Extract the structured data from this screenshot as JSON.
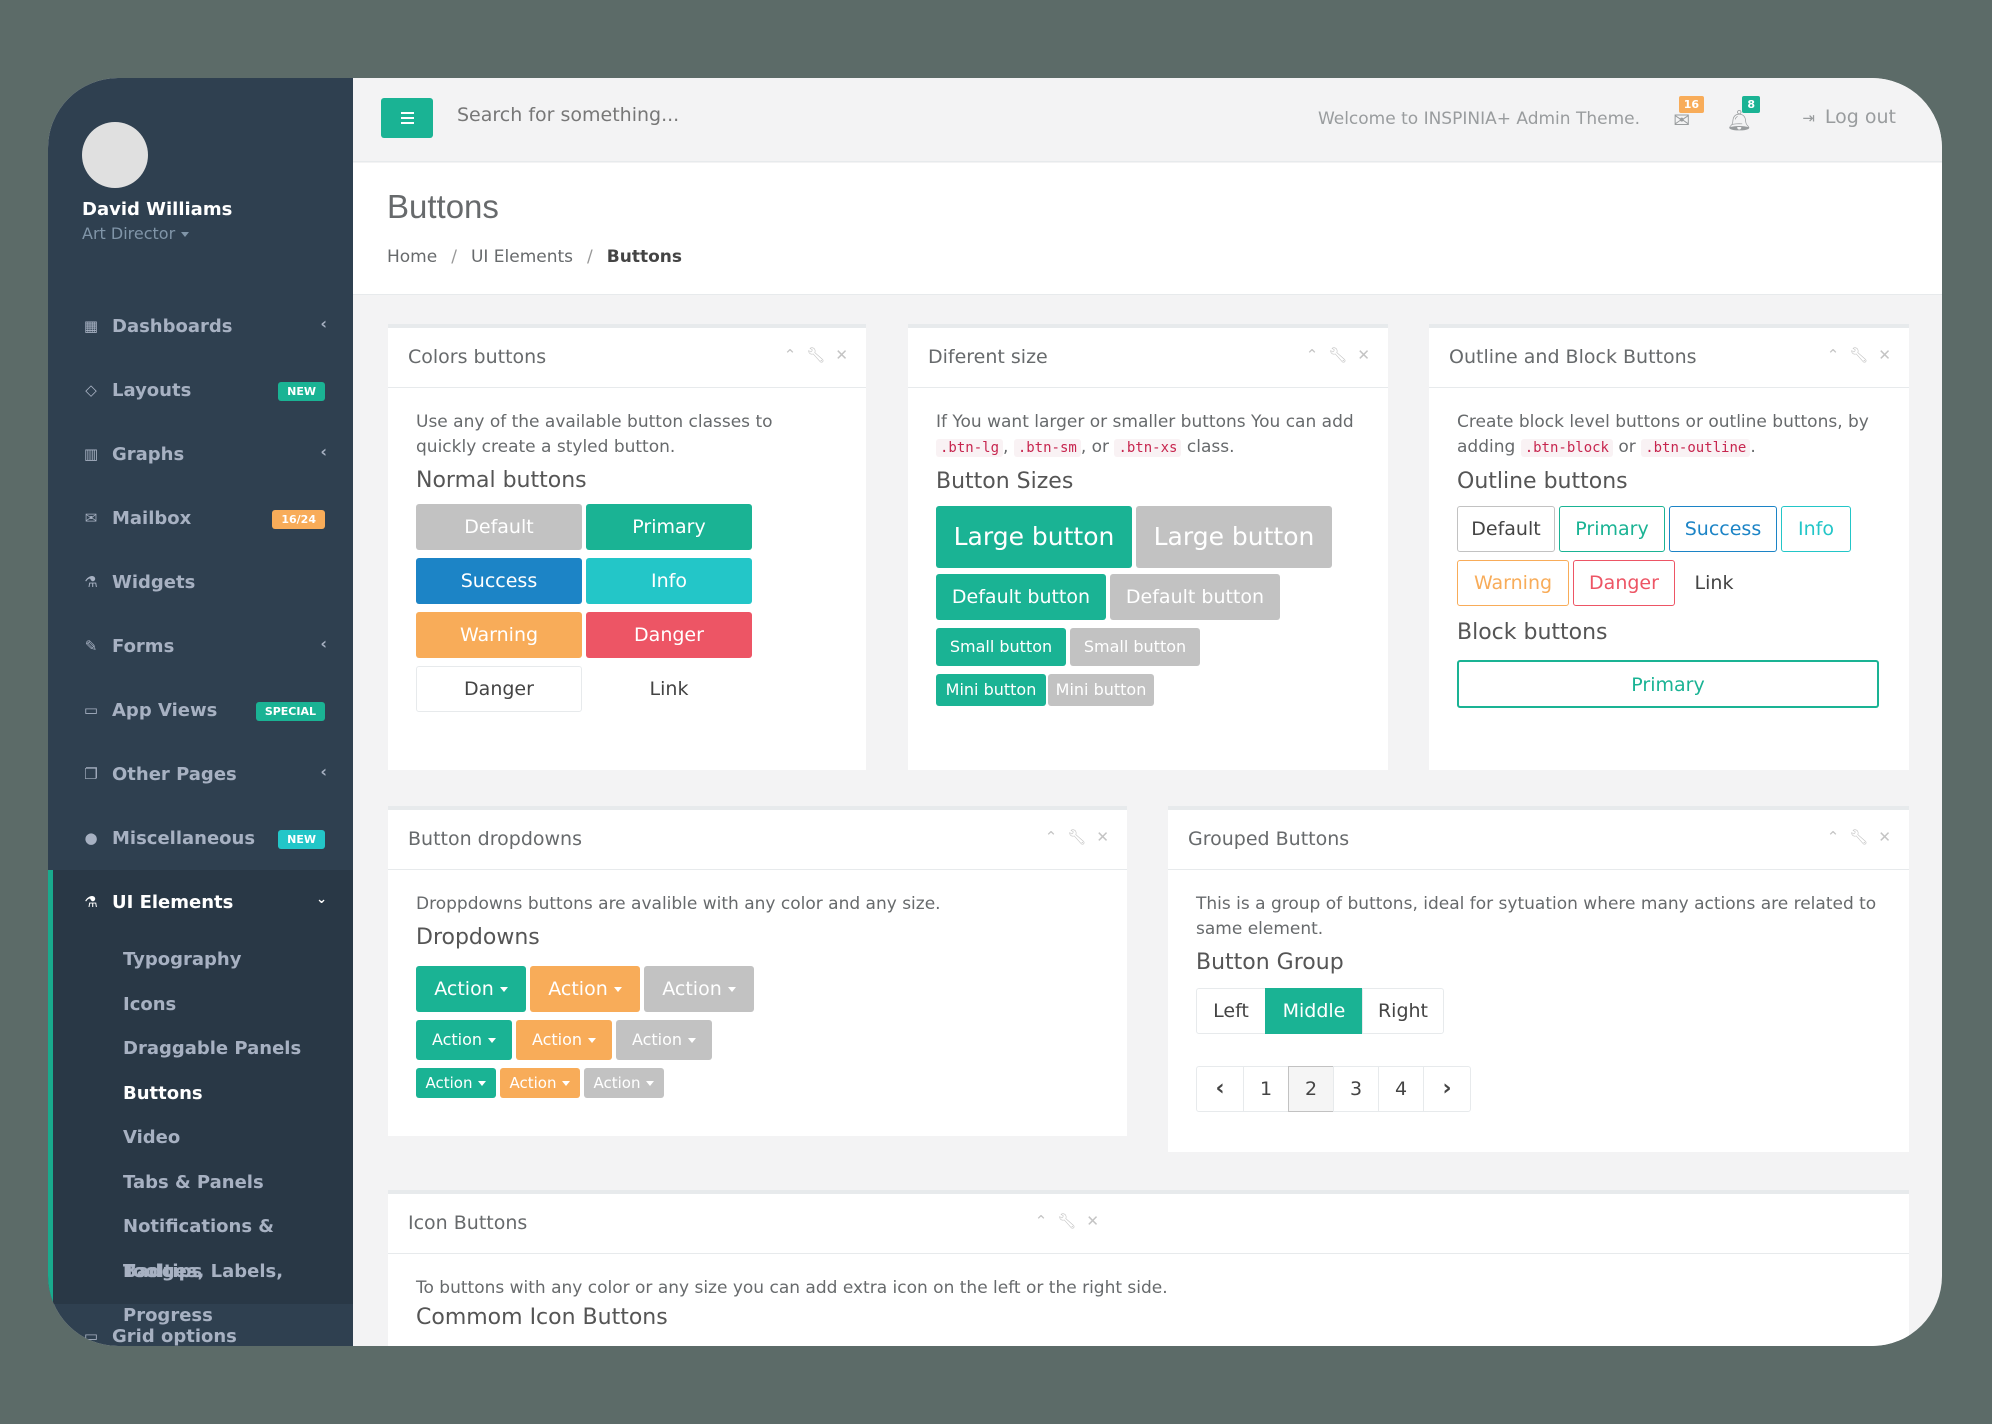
{
  "profile": {
    "name": "David Williams",
    "role": "Art Director"
  },
  "nav": [
    {
      "label": "Dashboards",
      "icon": "th-large-icon",
      "glyph": "▦"
    },
    {
      "label": "Layouts",
      "icon": "diamond-icon",
      "glyph": "◇",
      "badge": "NEW",
      "badge_color": "#1ab394"
    },
    {
      "label": "Graphs",
      "icon": "bar-chart-icon",
      "glyph": "▥"
    },
    {
      "label": "Mailbox",
      "icon": "envelope-icon",
      "glyph": "✉",
      "badge": "16/24",
      "badge_color": "#f8ac59"
    },
    {
      "label": "Widgets",
      "icon": "flask-icon",
      "glyph": "⚗"
    },
    {
      "label": "Forms",
      "icon": "edit-icon",
      "glyph": "✎"
    },
    {
      "label": "App Views",
      "icon": "desktop-icon",
      "glyph": "▭",
      "badge": "SPECIAL",
      "badge_color": "#1ab394"
    },
    {
      "label": "Other Pages",
      "icon": "files-icon",
      "glyph": "❐"
    },
    {
      "label": "Miscellaneous",
      "icon": "globe-icon",
      "glyph": "●",
      "badge": "NEW",
      "badge_color": "#23c6c8"
    }
  ],
  "ui_elements": {
    "label": "UI Elements",
    "items": [
      "Typography",
      "Icons",
      "Draggable Panels",
      "Buttons",
      "Video",
      "Tabs & Panels",
      "Notifications & Tooltips",
      "Badges, Labels, Progress"
    ]
  },
  "grid_options": "Grid options",
  "topbar": {
    "search_placeholder": "Search for something...",
    "welcome": "Welcome to INSPINIA+ Admin Theme.",
    "mail_count": "16",
    "bell_count": "8",
    "logout": "Log out"
  },
  "heading": {
    "title": "Buttons",
    "crumb1": "Home",
    "crumb2": "UI Elements",
    "crumb3": "Buttons"
  },
  "colors_panel": {
    "title": "Colors buttons",
    "desc": "Use any of the available button classes to quickly create a styled button.",
    "sub": "Normal buttons",
    "buttons": [
      "Default",
      "Primary",
      "Success",
      "Info",
      "Warning",
      "Danger",
      "Danger",
      "Link"
    ]
  },
  "size_panel": {
    "title": "Diferent size",
    "desc1": "If You want larger or smaller buttons You can add",
    "code1": ".btn-lg",
    "code2": ".btn-sm",
    "or": ", or",
    "code3": ".btn-xs",
    "desc2": "class.",
    "sub": "Button Sizes",
    "large": "Large button",
    "default": "Default button",
    "small": "Small button",
    "mini": "Mini button"
  },
  "outline_panel": {
    "title": "Outline and Block Buttons",
    "desc1": "Create block level buttons or outline buttons, by adding",
    "code1": ".btn-block",
    "or": "or",
    "code2": ".btn-outline",
    "sub1": "Outline buttons",
    "buttons": [
      "Default",
      "Primary",
      "Success",
      "Info",
      "Warning",
      "Danger",
      "Link"
    ],
    "sub2": "Block buttons",
    "block": "Primary"
  },
  "dropdown_panel": {
    "title": "Button dropdowns",
    "desc": "Droppdowns buttons are avalible with any color and any size.",
    "sub": "Dropdowns",
    "label": "Action"
  },
  "grouped_panel": {
    "title": "Grouped Buttons",
    "desc": "This is a group of buttons, ideal for sytuation where many actions are related to same element.",
    "sub": "Button Group",
    "group": [
      "Left",
      "Middle",
      "Right"
    ],
    "pages": [
      "1",
      "2",
      "3",
      "4"
    ]
  },
  "icon_panel": {
    "title": "Icon Buttons",
    "desc": "To buttons with any color or any size you can add extra icon on the left or the right side.",
    "sub": "Commom Icon Buttons"
  },
  "colors": {
    "primary": "#1ab394",
    "success": "#1c84c6",
    "info": "#23c6c8",
    "warning": "#f8ac59",
    "danger": "#ed5565",
    "default": "#c2c2c2",
    "sidebar": "#2f4050"
  }
}
